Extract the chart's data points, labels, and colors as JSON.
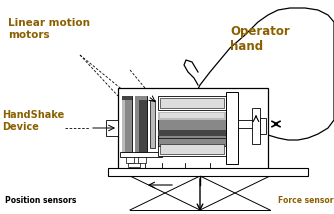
{
  "bg_color": "#ffffff",
  "labels": {
    "linear_motion": "Linear motion\nmotors",
    "operator_hand": "Operator\nhand",
    "handshake": "HandShake\nDevice",
    "position_sensors": "Position sensors",
    "force_sensors": "Force sensors"
  },
  "label_colors": {
    "linear_motion": "#8B6000",
    "operator_hand": "#8B6000",
    "handshake": "#8B6000",
    "position_sensors": "#000000",
    "force_sensors": "#8B6000"
  },
  "colors": {
    "black": "#000000",
    "gray_dark": "#444444",
    "gray_mid": "#888888",
    "gray_light": "#bbbbbb",
    "gray_vlight": "#dddddd",
    "white": "#ffffff"
  }
}
